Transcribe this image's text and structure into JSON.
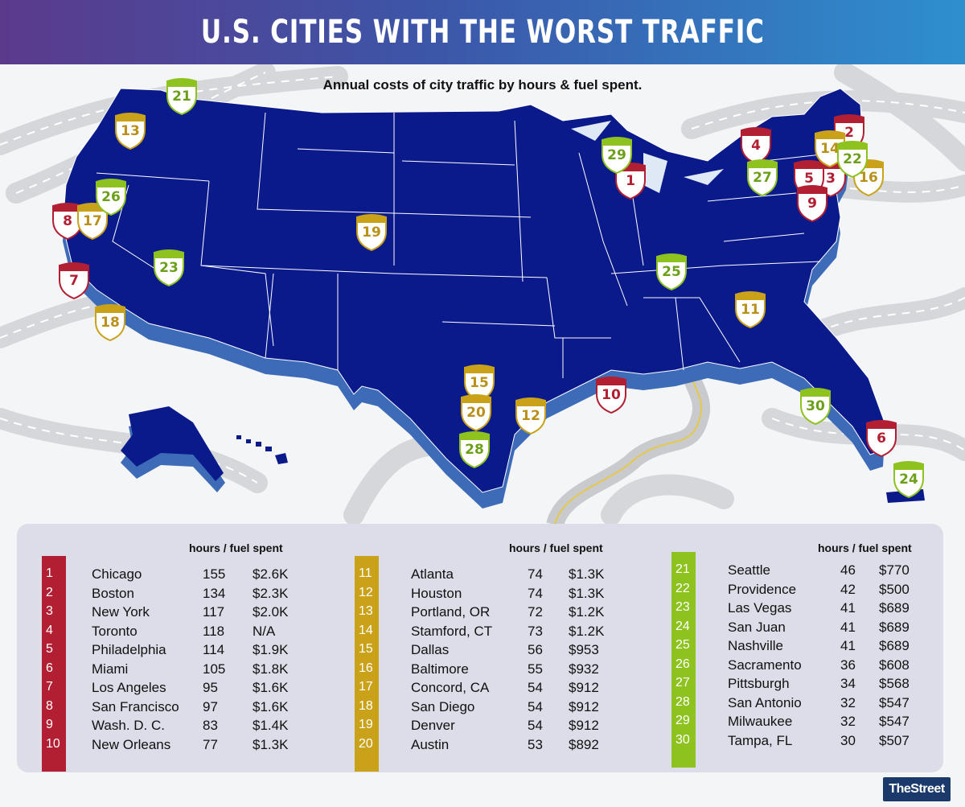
{
  "header": {
    "title": "U.S. CITIES WITH THE WORST TRAFFIC",
    "subtitle": "Annual costs of city traffic by hours & fuel spent."
  },
  "legend": {
    "column_header": "hours / fuel spent",
    "groups": [
      {
        "color": "#b21f33",
        "rows": [
          {
            "rank": "1",
            "city": "Chicago",
            "hours": "155",
            "fuel": "$2.6K"
          },
          {
            "rank": "2",
            "city": "Boston",
            "hours": "134",
            "fuel": "$2.3K"
          },
          {
            "rank": "3",
            "city": "New York",
            "hours": "117",
            "fuel": "$2.0K"
          },
          {
            "rank": "4",
            "city": "Toronto",
            "hours": "118",
            "fuel": "N/A"
          },
          {
            "rank": "5",
            "city": "Philadelphia",
            "hours": "114",
            "fuel": "$1.9K"
          },
          {
            "rank": "6",
            "city": "Miami",
            "hours": "105",
            "fuel": "$1.8K"
          },
          {
            "rank": "7",
            "city": "Los Angeles",
            "hours": "95",
            "fuel": "$1.6K"
          },
          {
            "rank": "8",
            "city": "San Francisco",
            "hours": "97",
            "fuel": "$1.6K"
          },
          {
            "rank": "9",
            "city": "Wash. D. C.",
            "hours": "83",
            "fuel": "$1.4K"
          },
          {
            "rank": "10",
            "city": "New Orleans",
            "hours": "77",
            "fuel": "$1.3K"
          }
        ]
      },
      {
        "color": "#c9a21a",
        "rows": [
          {
            "rank": "11",
            "city": "Atlanta",
            "hours": "74",
            "fuel": "$1.3K"
          },
          {
            "rank": "12",
            "city": "Houston",
            "hours": "74",
            "fuel": "$1.3K"
          },
          {
            "rank": "13",
            "city": "Portland, OR",
            "hours": "72",
            "fuel": "$1.2K"
          },
          {
            "rank": "14",
            "city": "Stamford, CT",
            "hours": "73",
            "fuel": "$1.2K"
          },
          {
            "rank": "15",
            "city": "Dallas",
            "hours": "56",
            "fuel": "$953"
          },
          {
            "rank": "16",
            "city": "Baltimore",
            "hours": "55",
            "fuel": "$932"
          },
          {
            "rank": "17",
            "city": "Concord, CA",
            "hours": "54",
            "fuel": "$912"
          },
          {
            "rank": "18",
            "city": "San Diego",
            "hours": "54",
            "fuel": "$912"
          },
          {
            "rank": "19",
            "city": "Denver",
            "hours": "54",
            "fuel": "$912"
          },
          {
            "rank": "20",
            "city": "Austin",
            "hours": "53",
            "fuel": "$892"
          }
        ]
      },
      {
        "color": "#8dc21f",
        "rows": [
          {
            "rank": "21",
            "city": "Seattle",
            "hours": "46",
            "fuel": "$770"
          },
          {
            "rank": "22",
            "city": "Providence",
            "hours": "42",
            "fuel": "$500"
          },
          {
            "rank": "23",
            "city": "Las Vegas",
            "hours": "41",
            "fuel": "$689"
          },
          {
            "rank": "24",
            "city": "San Juan",
            "hours": "41",
            "fuel": "$689"
          },
          {
            "rank": "25",
            "city": "Nashville",
            "hours": "41",
            "fuel": "$689"
          },
          {
            "rank": "26",
            "city": "Sacramento",
            "hours": "36",
            "fuel": "$608"
          },
          {
            "rank": "27",
            "city": "Pittsburgh",
            "hours": "34",
            "fuel": "$568"
          },
          {
            "rank": "28",
            "city": "San Antonio",
            "hours": "32",
            "fuel": "$547"
          },
          {
            "rank": "29",
            "city": "Milwaukee",
            "hours": "32",
            "fuel": "$547"
          },
          {
            "rank": "30",
            "city": "Tampa, FL",
            "hours": "30",
            "fuel": "$507"
          }
        ]
      }
    ]
  },
  "map_markers": [
    {
      "rank": "1",
      "tier": 0
    },
    {
      "rank": "2",
      "tier": 0
    },
    {
      "rank": "3",
      "tier": 0
    },
    {
      "rank": "4",
      "tier": 0
    },
    {
      "rank": "5",
      "tier": 0
    },
    {
      "rank": "6",
      "tier": 0
    },
    {
      "rank": "7",
      "tier": 0
    },
    {
      "rank": "8",
      "tier": 0
    },
    {
      "rank": "9",
      "tier": 0
    },
    {
      "rank": "10",
      "tier": 0
    },
    {
      "rank": "11",
      "tier": 1
    },
    {
      "rank": "12",
      "tier": 1
    },
    {
      "rank": "13",
      "tier": 1
    },
    {
      "rank": "14",
      "tier": 1
    },
    {
      "rank": "15",
      "tier": 1
    },
    {
      "rank": "16",
      "tier": 1
    },
    {
      "rank": "17",
      "tier": 1
    },
    {
      "rank": "18",
      "tier": 1
    },
    {
      "rank": "19",
      "tier": 1
    },
    {
      "rank": "20",
      "tier": 1
    },
    {
      "rank": "21",
      "tier": 2
    },
    {
      "rank": "22",
      "tier": 2
    },
    {
      "rank": "23",
      "tier": 2
    },
    {
      "rank": "24",
      "tier": 2
    },
    {
      "rank": "25",
      "tier": 2
    },
    {
      "rank": "26",
      "tier": 2
    },
    {
      "rank": "27",
      "tier": 2
    },
    {
      "rank": "28",
      "tier": 2
    },
    {
      "rank": "29",
      "tier": 2
    },
    {
      "rank": "30",
      "tier": 2
    }
  ],
  "colors": {
    "map_fill": "#0b1a8a",
    "map_shadow": "#3d6bb8",
    "road": "#d4d5d8"
  },
  "brand": "TheStreet"
}
